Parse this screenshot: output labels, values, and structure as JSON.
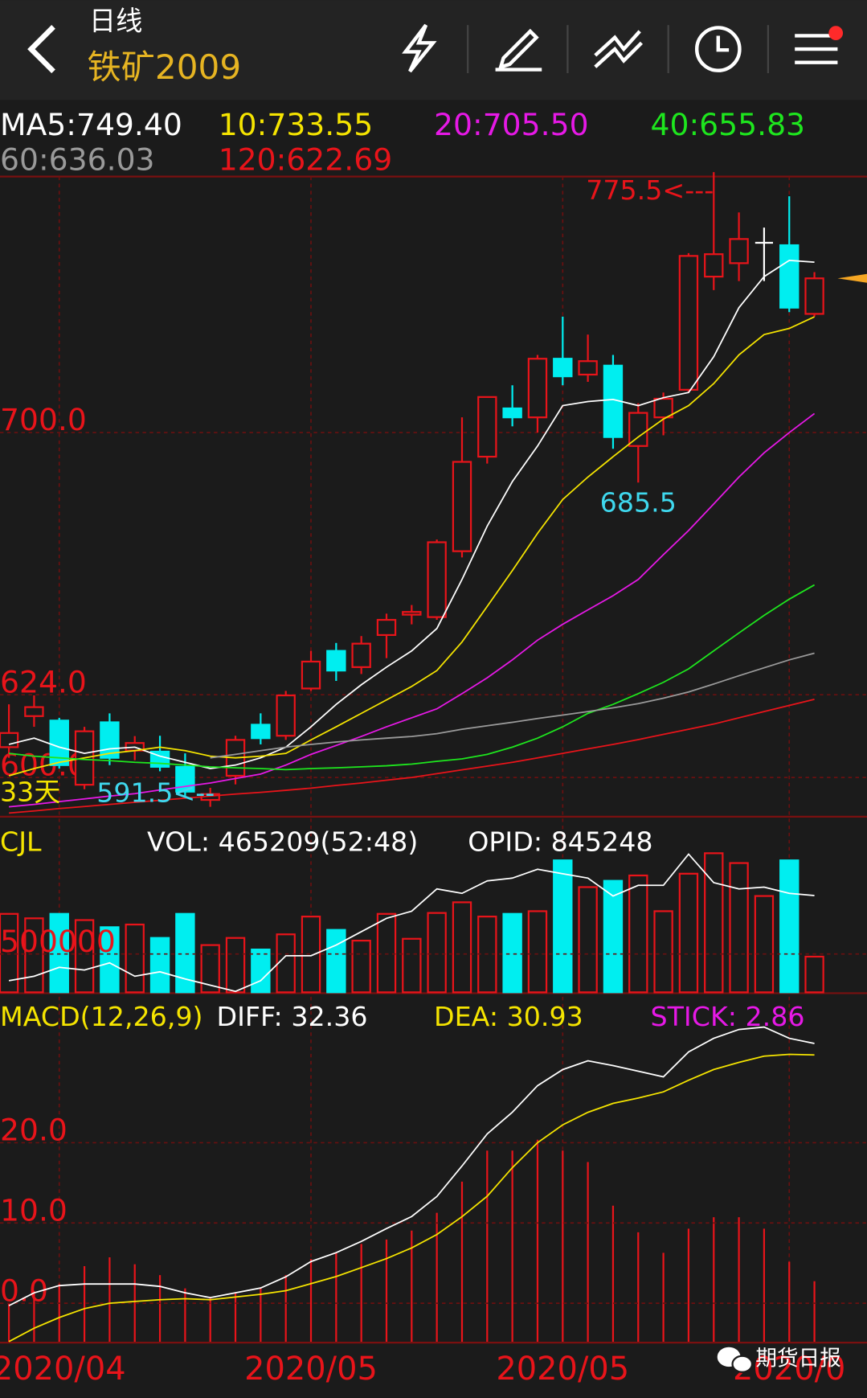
{
  "header": {
    "title": "日线",
    "symbol": "铁矿2009"
  },
  "watermark": "期货日报",
  "chart_data": [
    {
      "type": "candlestick",
      "categories": [
        null,
        null,
        "2020/04",
        null,
        null,
        null,
        null,
        null,
        null,
        null,
        null,
        null,
        "2020/05",
        null,
        null,
        null,
        null,
        null,
        null,
        null,
        null,
        null,
        "2020/05",
        null,
        null,
        null,
        null,
        null,
        null,
        null,
        null,
        "2020/0",
        null
      ],
      "open": [
        608.8,
        617.8,
        616.5,
        597.9,
        616.0,
        607.8,
        607.5,
        603.1,
        593.5,
        600.5,
        615.3,
        612.1,
        625.8,
        636.7,
        632.0,
        641.3,
        647.2,
        646.5,
        665.6,
        693.0,
        707.0,
        704.4,
        721.4,
        716.8,
        719.4,
        696.1,
        704.4,
        712.4,
        745.2,
        749.1,
        755.0,
        754.3,
        734.4
      ],
      "high": [
        621.2,
        623.8,
        617.3,
        614.7,
        618.6,
        612.0,
        612.1,
        607.0,
        597.0,
        612.1,
        618.6,
        625.1,
        636.7,
        639.0,
        641.0,
        647.5,
        650.0,
        669.0,
        704.4,
        710.3,
        713.7,
        722.5,
        733.6,
        728.4,
        722.5,
        708.5,
        711.6,
        752.0,
        775.5,
        763.8,
        759.4,
        768.5,
        746.5
      ],
      "low": [
        605.7,
        614.7,
        602.6,
        596.6,
        603.6,
        605.0,
        601.8,
        594.0,
        591.5,
        598.0,
        609.6,
        610.9,
        625.1,
        628.0,
        630.0,
        634.6,
        644.4,
        645.7,
        663.8,
        691.0,
        701.8,
        700.0,
        713.7,
        714.7,
        695.3,
        685.5,
        699.2,
        711.6,
        741.3,
        743.9,
        743.9,
        734.9,
        733.6
      ],
      "close": [
        612.9,
        620.4,
        603.6,
        613.4,
        605.7,
        610.0,
        603.1,
        595.9,
        595.2,
        610.9,
        611.4,
        623.8,
        633.6,
        631.0,
        638.8,
        645.7,
        648.0,
        668.2,
        691.5,
        710.3,
        704.4,
        721.4,
        716.3,
        720.7,
        698.7,
        705.7,
        709.8,
        751.2,
        751.7,
        756.1,
        755.0,
        736.2,
        744.7
      ],
      "up_color": "#e8141a",
      "down_color": "#00eef0",
      "flat_color": "#ffffff",
      "ylim": [
        588.9,
        774.2
      ],
      "yticks": [
        {
          "value": 700,
          "label": "700.0"
        },
        {
          "value": 624,
          "label": "624.0"
        },
        {
          "value": 600,
          "label": "600.0"
        }
      ],
      "grid": true,
      "series": [
        {
          "label": "MA5:749.40",
          "color": "#ffffff",
          "values": [
            609.6,
            611.4,
            608.8,
            607.0,
            608.3,
            608.8,
            606.2,
            604.4,
            602.6,
            603.6,
            605.7,
            608.8,
            614.7,
            621.2,
            626.9,
            632.0,
            636.7,
            643.2,
            657.4,
            672.9,
            685.8,
            696.1,
            707.8,
            709.0,
            709.6,
            707.8,
            710.1,
            711.6,
            722.0,
            736.2,
            745.2,
            749.9,
            749.4
          ]
        },
        {
          "label": "10:733.55",
          "color": "#f5e400",
          "values": [
            600.5,
            602.6,
            604.4,
            605.7,
            607.0,
            607.8,
            608.8,
            607.8,
            606.2,
            605.7,
            606.2,
            607.0,
            610.9,
            614.7,
            618.6,
            622.5,
            626.4,
            631.0,
            639.3,
            649.6,
            660.0,
            670.8,
            680.6,
            687.1,
            693.0,
            698.7,
            703.9,
            707.8,
            714.2,
            722.5,
            728.4,
            730.2,
            733.55
          ]
        },
        {
          "label": "20:705.50",
          "color": "#e619e6",
          "values": [
            591.5,
            592.2,
            593.0,
            593.8,
            594.6,
            595.3,
            596.4,
            597.4,
            598.4,
            599.7,
            601.0,
            603.6,
            606.7,
            609.3,
            611.9,
            614.7,
            617.3,
            619.9,
            624.3,
            628.9,
            634.1,
            639.8,
            644.4,
            648.6,
            652.7,
            657.4,
            664.6,
            671.6,
            679.3,
            687.1,
            694.1,
            700.0,
            705.5
          ]
        },
        {
          "label": "40:655.83",
          "color": "#1ee61e",
          "values": [
            607.0,
            606.2,
            605.7,
            605.2,
            604.9,
            604.4,
            604.1,
            603.6,
            603.1,
            602.8,
            602.6,
            602.3,
            602.6,
            602.8,
            603.1,
            603.4,
            603.9,
            604.7,
            605.4,
            606.7,
            608.8,
            611.4,
            614.7,
            618.6,
            621.2,
            624.3,
            627.6,
            631.5,
            636.7,
            641.9,
            647.0,
            651.7,
            655.83
          ]
        },
        {
          "label": "60:636.03",
          "color": "#9a9a9a",
          "values": [
            null,
            null,
            null,
            null,
            null,
            null,
            null,
            null,
            605.7,
            606.7,
            607.8,
            608.8,
            609.6,
            610.3,
            610.9,
            611.4,
            611.9,
            612.7,
            614.0,
            615.0,
            616.0,
            617.1,
            618.1,
            619.1,
            620.2,
            621.4,
            623.0,
            624.8,
            627.1,
            629.5,
            631.8,
            634.1,
            636.03
          ]
        },
        {
          "label": "120:622.69",
          "color": "#e8141a",
          "values": [
            589.7,
            590.3,
            591.0,
            591.6,
            592.2,
            592.8,
            593.4,
            594.0,
            594.6,
            595.2,
            595.7,
            596.3,
            596.9,
            597.7,
            598.4,
            599.2,
            600.0,
            601.1,
            602.2,
            603.3,
            604.4,
            605.7,
            607.0,
            608.3,
            609.6,
            611.0,
            612.5,
            614.0,
            615.5,
            617.3,
            619.1,
            620.9,
            622.69
          ]
        }
      ],
      "annotations": [
        {
          "label": "775.5<---",
          "value": 775.5
        },
        {
          "label": "685.5",
          "value": 685.5
        },
        {
          "label": "591.5<--",
          "value": 591.5
        }
      ],
      "days_label": "33天"
    },
    {
      "type": "volume",
      "title": "CJL",
      "vol_label": "VOL: 465209(52:48)",
      "opid_label": "OPID: 845248",
      "values": [
        1023000,
        965000,
        1023000,
        942000,
        849000,
        884000,
        709000,
        1023000,
        616000,
        709000,
        558000,
        756000,
        988000,
        814000,
        674000,
        1023000,
        698000,
        1035000,
        1174000,
        988000,
        1023000,
        1058000,
        1721000,
        1372000,
        1454000,
        1524000,
        1058000,
        1547000,
        1814000,
        1686000,
        1256000,
        1721000,
        465209
      ],
      "ylim": [
        0,
        2128000
      ],
      "yticks": [
        500000
      ],
      "y2lim": [
        620000,
        1000000
      ],
      "series": [
        {
          "name": "OPID",
          "color": "#ffffff",
          "axis": "y2",
          "values": [
            647000,
            657400,
            678200,
            671900,
            688500,
            657400,
            667800,
            651200,
            636600,
            622100,
            647000,
            705200,
            705200,
            730100,
            761200,
            792400,
            809000,
            860900,
            850500,
            879600,
            885900,
            906600,
            896200,
            885900,
            844300,
            869200,
            869200,
            941900,
            875500,
            860900,
            865100,
            850500,
            845248
          ]
        }
      ]
    },
    {
      "type": "macd",
      "title": "MACD(12,26,9)",
      "ylim": [
        -4.8,
        37.4
      ],
      "yticks": [
        {
          "value": 20,
          "label": "20.0"
        },
        {
          "value": 10,
          "label": "10.0"
        },
        {
          "value": 0,
          "label": "0.0"
        }
      ],
      "y2lim": [
        0,
        16
      ],
      "series": [
        {
          "label": "DIFF: 32.36",
          "color": "#ffffff",
          "values": [
            -0.3,
            1.3,
            2.2,
            2.4,
            2.4,
            2.4,
            2.1,
            1.3,
            0.7,
            1.3,
            1.9,
            3.3,
            5.2,
            6.3,
            7.7,
            9.3,
            10.8,
            13.3,
            17.1,
            21.1,
            23.8,
            27.1,
            29.1,
            30.2,
            29.6,
            28.9,
            28.2,
            31.3,
            33.0,
            34.1,
            34.4,
            33.0,
            32.36
          ]
        },
        {
          "label": "DEA: 30.93",
          "color": "#f5e400",
          "values": [
            -4.78,
            -3.11,
            -1.78,
            -0.67,
            0,
            0.22,
            0.44,
            0.56,
            0.44,
            0.78,
            1.11,
            1.56,
            2.44,
            3.33,
            4.44,
            5.56,
            6.89,
            8.56,
            10.78,
            13.33,
            16.89,
            20.0,
            22.22,
            23.78,
            24.89,
            25.56,
            26.33,
            27.78,
            29.11,
            30.0,
            30.78,
            31.0,
            30.93
          ]
        },
        {
          "label": "STICK: 2.86",
          "color": "#e619e6",
          "bar_color": "#e8141a",
          "axis": "y2",
          "values": [
            1.81,
            2.4,
            2.73,
            3.57,
            3.99,
            3.66,
            3.15,
            2.52,
            2.1,
            2.31,
            2.52,
            3.15,
            3.91,
            4.2,
            4.62,
            4.83,
            5.25,
            6.09,
            7.56,
            9.03,
            9.03,
            9.54,
            9.03,
            8.49,
            6.43,
            5.17,
            4.2,
            5.34,
            5.88,
            5.88,
            5.34,
            3.78,
            2.86
          ]
        }
      ]
    }
  ]
}
